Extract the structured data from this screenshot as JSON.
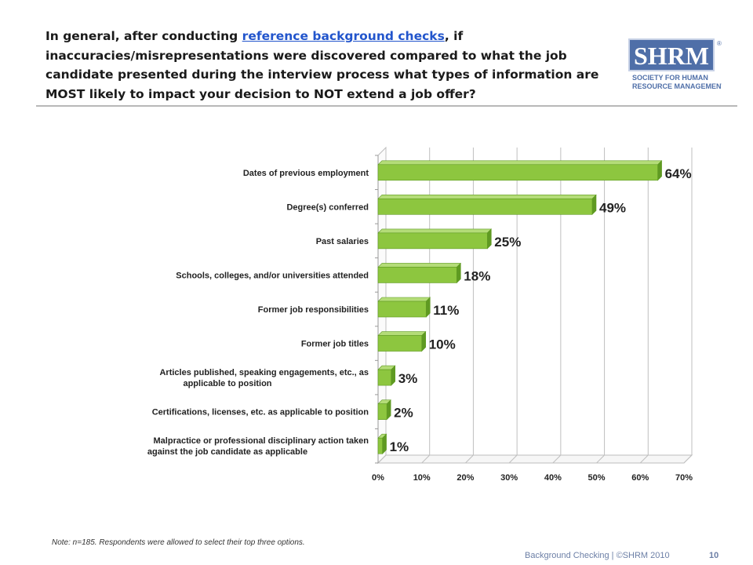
{
  "slide": {
    "title_before": "In general, after conducting ",
    "title_link": "reference background checks",
    "title_after": ", if inaccuracies/misrepresentations were discovered compared to what the job candidate presented during the interview process what types of information are MOST likely to impact your decision to NOT extend a job offer?",
    "note": "Note: n=185. Respondents were allowed to select their top three options.",
    "footer": "Background Checking | ©SHRM 2010",
    "page_number": "10"
  },
  "logo": {
    "abbrev": "SHRM",
    "line1": "SOCIETY FOR HUMAN",
    "line2": "RESOURCE MANAGEMENT",
    "mark": "®",
    "color": "#4f6fa8"
  },
  "chart_data": {
    "type": "bar",
    "orientation": "horizontal",
    "style": "3d",
    "categories": [
      "Dates of previous employment",
      "Degree(s) conferred",
      "Past salaries",
      "Schools, colleges, and/or universities attended",
      "Former job responsibilities",
      "Former job titles",
      "Articles published, speaking engagements, etc., as applicable to position",
      "Certifications, licenses, etc. as applicable to position",
      "Malpractice or professional disciplinary action taken against the job candidate as applicable"
    ],
    "values": [
      64,
      49,
      25,
      18,
      11,
      10,
      3,
      2,
      1
    ],
    "data_labels": [
      "64%",
      "49%",
      "25%",
      "18%",
      "11%",
      "10%",
      "3%",
      "2%",
      "1%"
    ],
    "xlim": [
      0,
      70
    ],
    "x_ticks": [
      0,
      10,
      20,
      30,
      40,
      50,
      60,
      70
    ],
    "x_tick_labels": [
      "0%",
      "10%",
      "20%",
      "30%",
      "40%",
      "50%",
      "60%",
      "70%"
    ],
    "grid": true,
    "bar_color": "#8dc63f",
    "bar_dark": "#5f9a22",
    "bar_top": "#b4dc78"
  }
}
